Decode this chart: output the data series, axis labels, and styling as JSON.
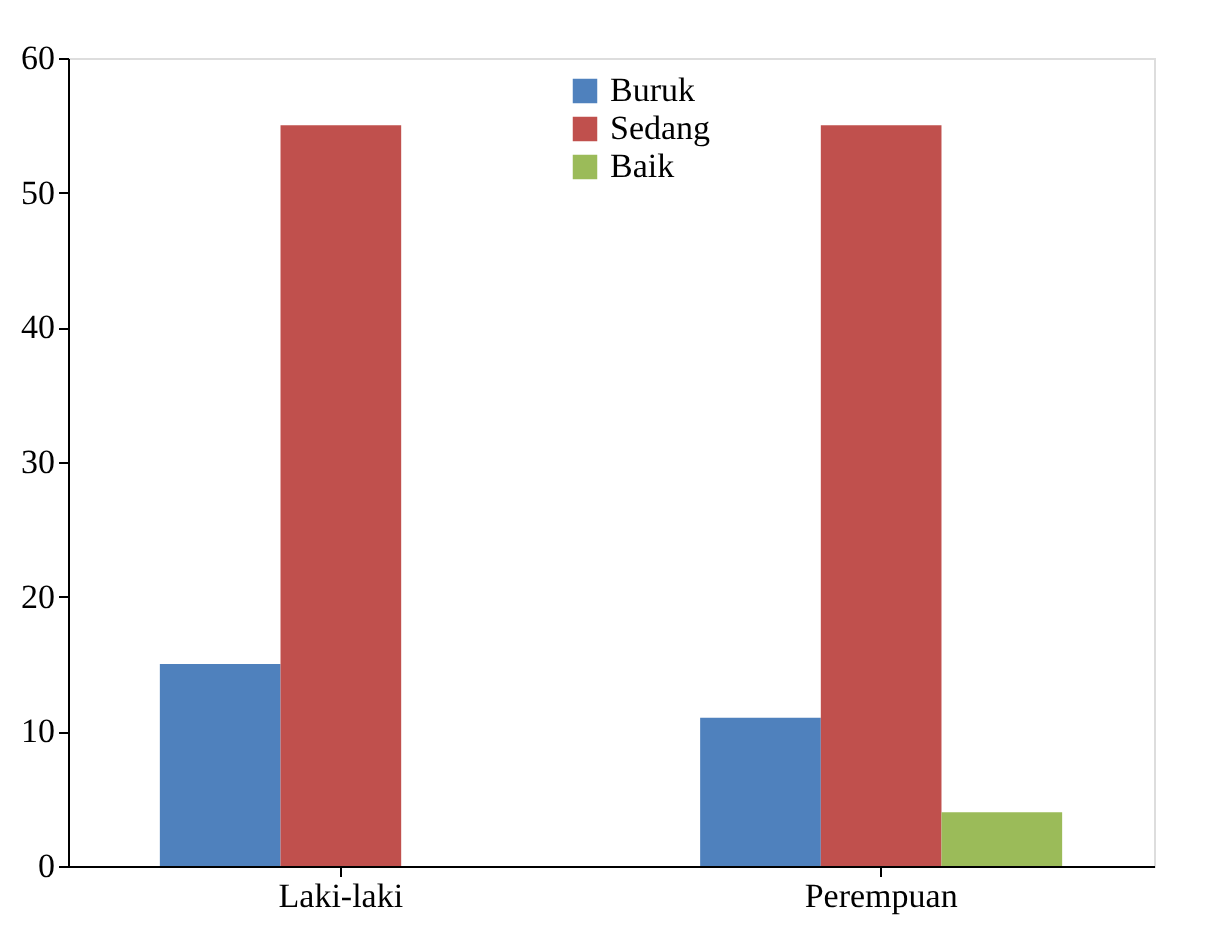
{
  "chart_data": {
    "type": "bar",
    "categories": [
      "Laki-laki",
      "Perempuan"
    ],
    "series": [
      {
        "name": "Buruk",
        "color": "#4f81bd",
        "values": [
          15,
          11
        ]
      },
      {
        "name": "Sedang",
        "color": "#c0504d",
        "values": [
          55,
          55
        ]
      },
      {
        "name": "Baik",
        "color": "#9bbb59",
        "values": [
          0,
          4
        ]
      }
    ],
    "ylim": [
      0,
      60
    ],
    "yticks": [
      0,
      10,
      20,
      30,
      40,
      50,
      60
    ],
    "grid": false,
    "legend": "top"
  }
}
